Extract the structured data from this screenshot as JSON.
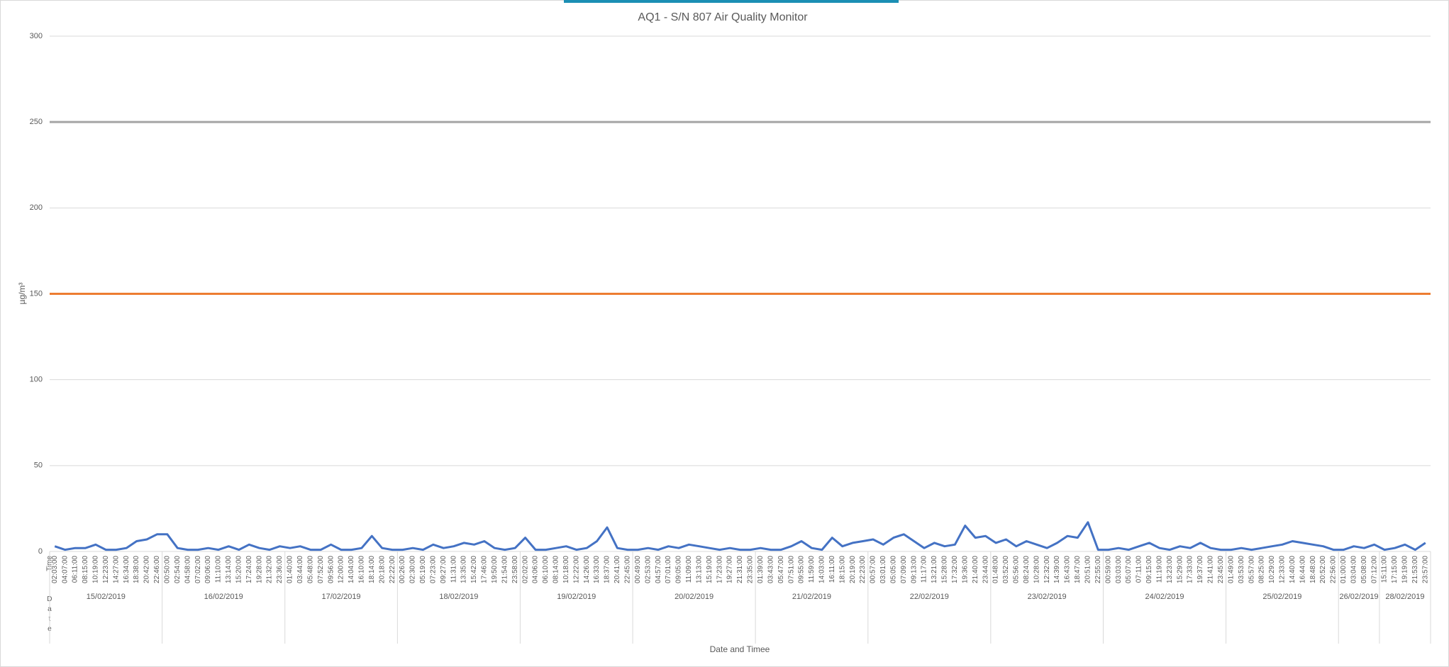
{
  "chart_data": {
    "type": "line",
    "title": "AQ1 - S/N 807 Air Quality Monitor",
    "y_label": "µg/m³",
    "x_label": "Date and Timee",
    "time_row_label": "Time",
    "date_row_label": "Date",
    "ylim": [
      0,
      300
    ],
    "yticks": [
      0,
      50,
      100,
      150,
      200,
      250,
      300
    ],
    "grid": true,
    "color": "#4472c4",
    "reference_lines": [
      {
        "value": 250,
        "color": "#a5a5a5"
      },
      {
        "value": 150,
        "color": "#ed7d31"
      }
    ],
    "groups": [
      {
        "label": "15/02/2019",
        "categories": [
          "02:03:00",
          "04:07:00",
          "06:11:00",
          "08:15:00",
          "10:19:00",
          "12:23:00",
          "14:27:00",
          "16:34:00",
          "18:38:00",
          "20:42:00",
          "22:46:00"
        ],
        "values": [
          3,
          1,
          2,
          2,
          4,
          1,
          1,
          2,
          6,
          7,
          10
        ]
      },
      {
        "label": "16/02/2019",
        "categories": [
          "00:50:00",
          "02:54:00",
          "04:58:00",
          "07:02:00",
          "09:06:00",
          "11:10:00",
          "13:14:00",
          "15:20:00",
          "17:24:00",
          "19:28:00",
          "21:32:00",
          "23:36:00"
        ],
        "values": [
          10,
          2,
          1,
          1,
          2,
          1,
          3,
          1,
          4,
          2,
          1,
          3
        ]
      },
      {
        "label": "17/02/2019",
        "categories": [
          "01:40:00",
          "03:44:00",
          "05:48:00",
          "07:52:00",
          "09:56:00",
          "12:00:00",
          "14:04:00",
          "16:10:00",
          "18:14:00",
          "20:18:00",
          "22:22:00"
        ],
        "values": [
          2,
          3,
          1,
          1,
          4,
          1,
          1,
          2,
          9,
          2,
          1
        ]
      },
      {
        "label": "18/02/2019",
        "categories": [
          "00:26:00",
          "02:30:00",
          "05:19:00",
          "07:23:00",
          "09:27:00",
          "11:31:00",
          "13:35:00",
          "15:42:00",
          "17:46:00",
          "19:50:00",
          "21:54:00",
          "23:58:00"
        ],
        "values": [
          1,
          2,
          1,
          4,
          2,
          3,
          5,
          4,
          6,
          2,
          1,
          2
        ]
      },
      {
        "label": "19/02/2019",
        "categories": [
          "02:02:00",
          "04:06:00",
          "06:10:00",
          "08:14:00",
          "10:18:00",
          "12:22:00",
          "14:26:00",
          "16:33:00",
          "18:37:00",
          "20:41:00",
          "22:45:00"
        ],
        "values": [
          8,
          1,
          1,
          2,
          3,
          1,
          2,
          6,
          14,
          2,
          1
        ]
      },
      {
        "label": "20/02/2019",
        "categories": [
          "00:49:00",
          "02:53:00",
          "04:57:00",
          "07:01:00",
          "09:05:00",
          "11:09:00",
          "13:13:00",
          "15:19:00",
          "17:23:00",
          "19:27:00",
          "21:31:00",
          "23:35:00"
        ],
        "values": [
          1,
          2,
          1,
          3,
          2,
          4,
          3,
          2,
          1,
          2,
          1,
          1
        ]
      },
      {
        "label": "21/02/2019",
        "categories": [
          "01:39:00",
          "03:43:00",
          "05:47:00",
          "07:51:00",
          "09:55:00",
          "11:59:00",
          "14:03:00",
          "16:11:00",
          "18:15:00",
          "20:19:00",
          "22:23:00"
        ],
        "values": [
          2,
          1,
          1,
          3,
          6,
          2,
          1,
          8,
          3,
          5,
          6
        ]
      },
      {
        "label": "22/02/2019",
        "categories": [
          "00:57:00",
          "03:01:00",
          "05:05:00",
          "07:09:00",
          "09:13:00",
          "11:17:00",
          "13:21:00",
          "15:28:00",
          "17:32:00",
          "19:36:00",
          "21:40:00",
          "23:44:00"
        ],
        "values": [
          7,
          4,
          8,
          10,
          6,
          2,
          5,
          3,
          4,
          15,
          8,
          9
        ]
      },
      {
        "label": "23/02/2019",
        "categories": [
          "01:48:00",
          "03:52:00",
          "05:56:00",
          "08:24:00",
          "10:28:00",
          "12:32:00",
          "14:39:00",
          "16:43:00",
          "18:47:00",
          "20:51:00",
          "22:55:00"
        ],
        "values": [
          5,
          7,
          3,
          6,
          4,
          2,
          5,
          9,
          8,
          17,
          1
        ]
      },
      {
        "label": "24/02/2019",
        "categories": [
          "00:59:00",
          "03:03:00",
          "05:07:00",
          "07:11:00",
          "09:15:00",
          "11:19:00",
          "13:23:00",
          "15:29:00",
          "17:33:00",
          "19:37:00",
          "21:41:00",
          "23:45:00"
        ],
        "values": [
          1,
          2,
          1,
          3,
          5,
          2,
          1,
          3,
          2,
          5,
          2,
          1
        ]
      },
      {
        "label": "25/02/2019",
        "categories": [
          "01:49:00",
          "03:53:00",
          "05:57:00",
          "08:25:00",
          "10:29:00",
          "12:33:00",
          "14:40:00",
          "16:44:00",
          "18:48:00",
          "20:52:00",
          "22:56:00"
        ],
        "values": [
          1,
          2,
          1,
          2,
          3,
          4,
          6,
          5,
          4,
          3,
          1
        ]
      },
      {
        "label": "26/02/2019",
        "categories": [
          "01:00:00",
          "03:04:00",
          "05:08:00",
          "07:12:00"
        ],
        "values": [
          1,
          3,
          2,
          4
        ]
      },
      {
        "label": "28/02/2019",
        "categories": [
          "15:11:00",
          "17:15:00",
          "19:19:00",
          "21:53:00",
          "23:57:00"
        ],
        "values": [
          1,
          2,
          4,
          1,
          5
        ]
      }
    ]
  }
}
